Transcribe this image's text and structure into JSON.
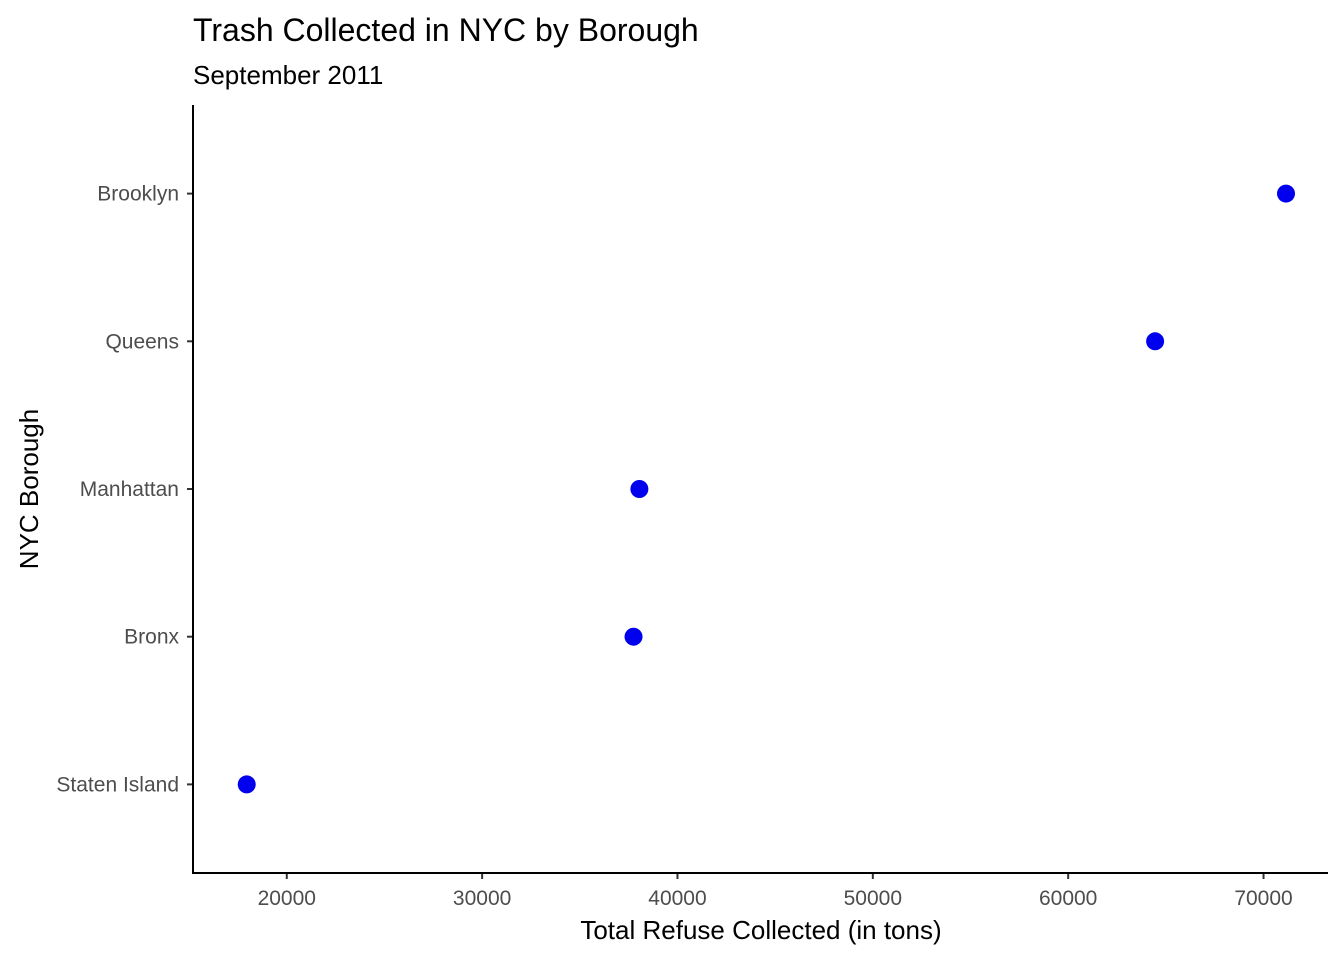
{
  "chart_data": {
    "type": "scatter",
    "title": "Trash Collected in NYC by Borough",
    "subtitle": "September 2011",
    "xlabel": "Total Refuse Collected (in tons)",
    "ylabel": "NYC Borough",
    "categories": [
      "Staten Island",
      "Bronx",
      "Manhattan",
      "Queens",
      "Brooklyn"
    ],
    "values": [
      17950,
      37750,
      38050,
      64450,
      71150
    ],
    "x_ticks": [
      20000,
      30000,
      40000,
      50000,
      60000,
      70000
    ],
    "xlim": [
      15200,
      73300
    ],
    "grid": false,
    "point_color": "#0000ee"
  }
}
